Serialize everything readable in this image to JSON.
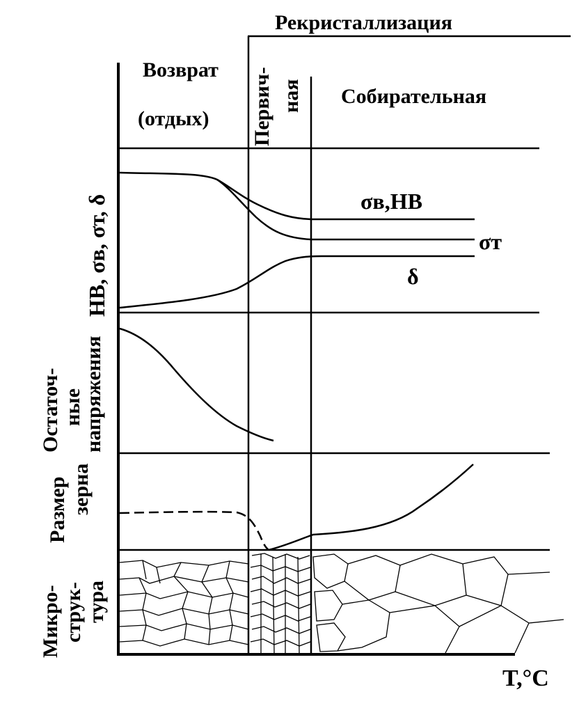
{
  "header": {
    "recrystallization": "Рекристаллизация",
    "recovery_line1": "Возврат",
    "recovery_line2": "(отдых)",
    "primary_line1": "Первич-",
    "primary_line2": "ная",
    "collective": "Собирательная"
  },
  "row_labels": {
    "properties": "HB, σв, σт, δ",
    "residual_line1": "Остаточ-",
    "residual_line2": "ные",
    "residual_line3": "напряжения",
    "grain_line1": "Размер",
    "grain_line2": "зерна",
    "micro_line1": "Микро-",
    "micro_line2": "струк-",
    "micro_line3": "тура"
  },
  "curve_labels": {
    "sigma_b_hb": "σв,HB",
    "sigma_t": "σт",
    "delta": "δ"
  },
  "axis": {
    "x_label": "T,°C"
  }
}
